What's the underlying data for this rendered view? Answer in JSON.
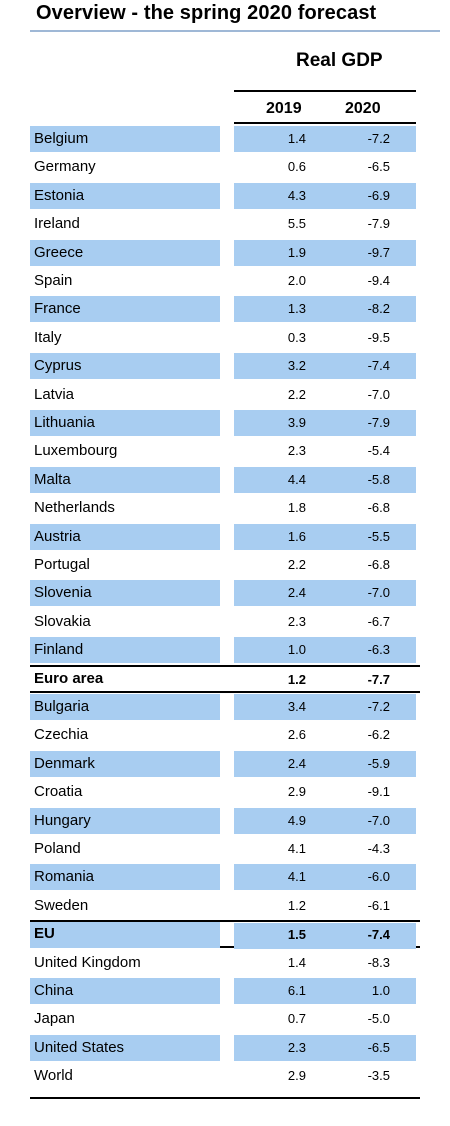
{
  "title": "Overview - the spring 2020 forecast",
  "header": "Real GDP",
  "years": [
    "2019",
    "2020"
  ],
  "rows": [
    {
      "name": "Belgium",
      "y2019": "1.4",
      "y2020": "-7.2",
      "shade": true,
      "bold": false
    },
    {
      "name": "Germany",
      "y2019": "0.6",
      "y2020": "-6.5",
      "shade": false,
      "bold": false
    },
    {
      "name": "Estonia",
      "y2019": "4.3",
      "y2020": "-6.9",
      "shade": true,
      "bold": false
    },
    {
      "name": "Ireland",
      "y2019": "5.5",
      "y2020": "-7.9",
      "shade": false,
      "bold": false
    },
    {
      "name": "Greece",
      "y2019": "1.9",
      "y2020": "-9.7",
      "shade": true,
      "bold": false
    },
    {
      "name": "Spain",
      "y2019": "2.0",
      "y2020": "-9.4",
      "shade": false,
      "bold": false
    },
    {
      "name": "France",
      "y2019": "1.3",
      "y2020": "-8.2",
      "shade": true,
      "bold": false
    },
    {
      "name": "Italy",
      "y2019": "0.3",
      "y2020": "-9.5",
      "shade": false,
      "bold": false
    },
    {
      "name": "Cyprus",
      "y2019": "3.2",
      "y2020": "-7.4",
      "shade": true,
      "bold": false
    },
    {
      "name": "Latvia",
      "y2019": "2.2",
      "y2020": "-7.0",
      "shade": false,
      "bold": false
    },
    {
      "name": "Lithuania",
      "y2019": "3.9",
      "y2020": "-7.9",
      "shade": true,
      "bold": false
    },
    {
      "name": "Luxembourg",
      "y2019": "2.3",
      "y2020": "-5.4",
      "shade": false,
      "bold": false
    },
    {
      "name": "Malta",
      "y2019": "4.4",
      "y2020": "-5.8",
      "shade": true,
      "bold": false
    },
    {
      "name": "Netherlands",
      "y2019": "1.8",
      "y2020": "-6.8",
      "shade": false,
      "bold": false
    },
    {
      "name": "Austria",
      "y2019": "1.6",
      "y2020": "-5.5",
      "shade": true,
      "bold": false
    },
    {
      "name": "Portugal",
      "y2019": "2.2",
      "y2020": "-6.8",
      "shade": false,
      "bold": false
    },
    {
      "name": "Slovenia",
      "y2019": "2.4",
      "y2020": "-7.0",
      "shade": true,
      "bold": false
    },
    {
      "name": "Slovakia",
      "y2019": "2.3",
      "y2020": "-6.7",
      "shade": false,
      "bold": false
    },
    {
      "name": "Finland",
      "y2019": "1.0",
      "y2020": "-6.3",
      "shade": true,
      "bold": false
    },
    {
      "name": "Euro area",
      "y2019": "1.2",
      "y2020": "-7.7",
      "shade": false,
      "bold": true
    },
    {
      "name": "Bulgaria",
      "y2019": "3.4",
      "y2020": "-7.2",
      "shade": true,
      "bold": false
    },
    {
      "name": "Czechia",
      "y2019": "2.6",
      "y2020": "-6.2",
      "shade": false,
      "bold": false
    },
    {
      "name": "Denmark",
      "y2019": "2.4",
      "y2020": "-5.9",
      "shade": true,
      "bold": false
    },
    {
      "name": "Croatia",
      "y2019": "2.9",
      "y2020": "-9.1",
      "shade": false,
      "bold": false
    },
    {
      "name": "Hungary",
      "y2019": "4.9",
      "y2020": "-7.0",
      "shade": true,
      "bold": false
    },
    {
      "name": "Poland",
      "y2019": "4.1",
      "y2020": "-4.3",
      "shade": false,
      "bold": false
    },
    {
      "name": "Romania",
      "y2019": "4.1",
      "y2020": "-6.0",
      "shade": true,
      "bold": false
    },
    {
      "name": "Sweden",
      "y2019": "1.2",
      "y2020": "-6.1",
      "shade": false,
      "bold": false
    },
    {
      "name": "EU",
      "y2019": "1.5",
      "y2020": "-7.4",
      "shade": true,
      "bold": true
    },
    {
      "name": "United Kingdom",
      "y2019": "1.4",
      "y2020": "-8.3",
      "shade": false,
      "bold": false
    },
    {
      "name": "China",
      "y2019": "6.1",
      "y2020": "1.0",
      "shade": true,
      "bold": false
    },
    {
      "name": "Japan",
      "y2019": "0.7",
      "y2020": "-5.0",
      "shade": false,
      "bold": false
    },
    {
      "name": "United States",
      "y2019": "2.3",
      "y2020": "-6.5",
      "shade": true,
      "bold": false
    },
    {
      "name": "World",
      "y2019": "2.9",
      "y2020": "-3.5",
      "shade": false,
      "bold": false
    }
  ],
  "colors": {
    "row_shade": "#a8cdf1",
    "title_rule": "#9fb8d6"
  }
}
